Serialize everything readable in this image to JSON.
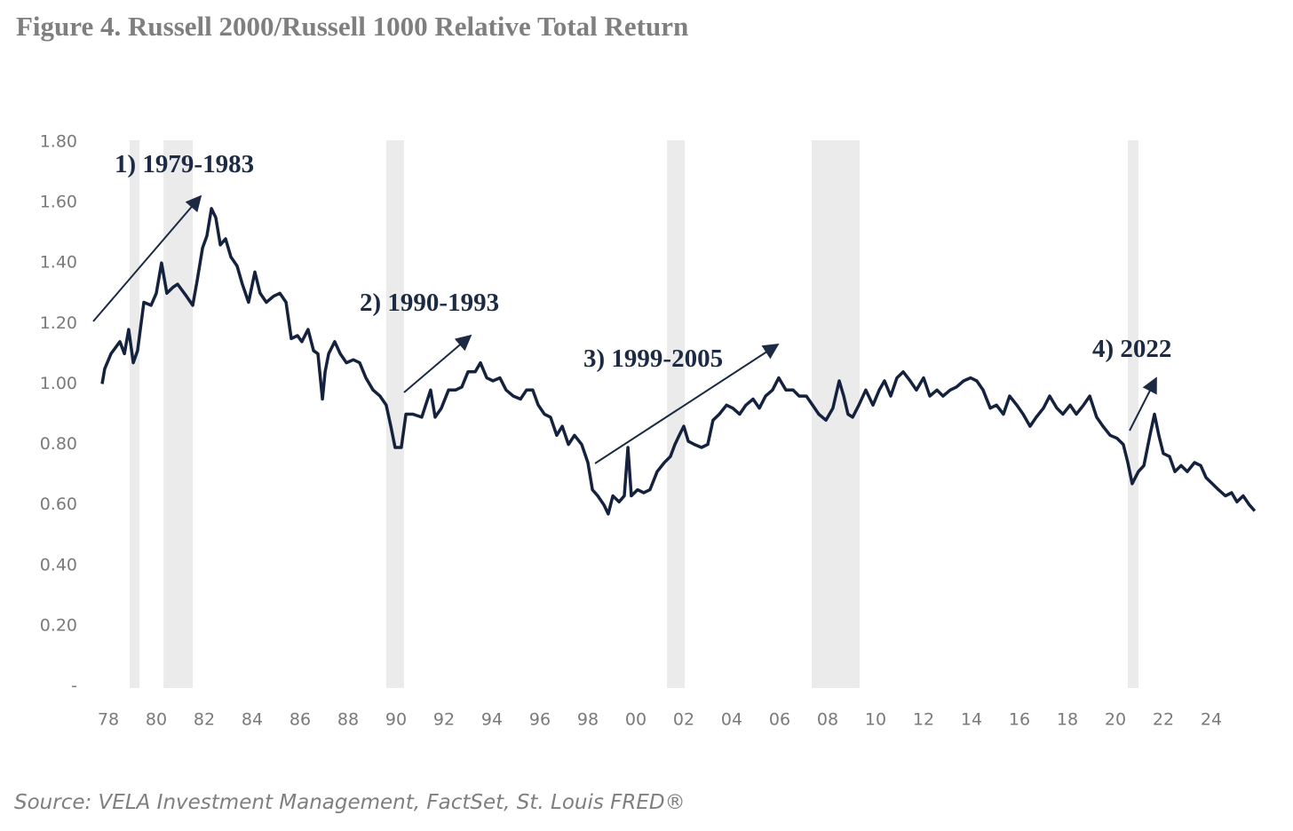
{
  "chart_data": {
    "type": "line",
    "title": "Figure 4. Russell 2000/Russell 1000 Relative Total Return",
    "source": "Source: VELA Investment Management, FactSet, St. Louis FRED®",
    "annotations": [
      "1) 1979-1983",
      "2) 1990-1993",
      "3) 1999-2005",
      "4) 2022"
    ],
    "color": "#15223d",
    "shade_color": "#ebebeb",
    "shaded_periods": [
      [
        1978.89,
        1979.3
      ],
      [
        1980.3,
        1981.52
      ],
      [
        1989.59,
        1990.33
      ],
      [
        2001.3,
        2002.04
      ],
      [
        2007.33,
        2009.33
      ],
      [
        2020.52,
        2020.96
      ]
    ],
    "xlim": [
      1977.2,
      2026.0
    ],
    "ylim": [
      0,
      1.8
    ],
    "xticks": [
      {
        "value": 1978,
        "label": "78"
      },
      {
        "value": 1980,
        "label": "80"
      },
      {
        "value": 1982,
        "label": "82"
      },
      {
        "value": 1984,
        "label": "84"
      },
      {
        "value": 1986,
        "label": "86"
      },
      {
        "value": 1988,
        "label": "88"
      },
      {
        "value": 1990,
        "label": "90"
      },
      {
        "value": 1992,
        "label": "92"
      },
      {
        "value": 1994,
        "label": "94"
      },
      {
        "value": 1996,
        "label": "96"
      },
      {
        "value": 1998,
        "label": "98"
      },
      {
        "value": 2000,
        "label": "00"
      },
      {
        "value": 2002,
        "label": "02"
      },
      {
        "value": 2004,
        "label": "04"
      },
      {
        "value": 2006,
        "label": "06"
      },
      {
        "value": 2008,
        "label": "08"
      },
      {
        "value": 2010,
        "label": "10"
      },
      {
        "value": 2012,
        "label": "12"
      },
      {
        "value": 2014,
        "label": "14"
      },
      {
        "value": 2016,
        "label": "16"
      },
      {
        "value": 2018,
        "label": "18"
      },
      {
        "value": 2020,
        "label": "20"
      },
      {
        "value": 2022,
        "label": "22"
      },
      {
        "value": 2024,
        "label": "24"
      }
    ],
    "yticks": [
      {
        "value": 0,
        "label": "-"
      },
      {
        "value": 0.2,
        "label": "0.20"
      },
      {
        "value": 0.4,
        "label": "0.40"
      },
      {
        "value": 0.6,
        "label": "0.60"
      },
      {
        "value": 0.8,
        "label": "0.80"
      },
      {
        "value": 1.0,
        "label": "1.00"
      },
      {
        "value": 1.2,
        "label": "1.20"
      },
      {
        "value": 1.4,
        "label": "1.40"
      },
      {
        "value": 1.6,
        "label": "1.60"
      },
      {
        "value": 1.8,
        "label": "1.80"
      }
    ],
    "x": [
      1977.74,
      1977.85,
      1978.11,
      1978.48,
      1978.67,
      1978.85,
      1979.04,
      1979.22,
      1979.48,
      1979.78,
      1980.0,
      1980.22,
      1980.44,
      1980.7,
      1980.89,
      1981.26,
      1981.52,
      1981.7,
      1981.93,
      1982.11,
      1982.3,
      1982.48,
      1982.67,
      1982.89,
      1983.11,
      1983.37,
      1983.59,
      1983.85,
      1984.11,
      1984.33,
      1984.59,
      1984.89,
      1985.15,
      1985.41,
      1985.63,
      1985.89,
      1986.07,
      1986.33,
      1986.56,
      1986.74,
      1986.93,
      1987.04,
      1987.19,
      1987.44,
      1987.67,
      1987.93,
      1988.22,
      1988.48,
      1988.74,
      1989.04,
      1989.33,
      1989.59,
      1989.78,
      1989.96,
      1990.22,
      1990.41,
      1990.7,
      1991.07,
      1991.44,
      1991.63,
      1991.89,
      1992.19,
      1992.48,
      1992.74,
      1993.0,
      1993.3,
      1993.52,
      1993.78,
      1994.04,
      1994.33,
      1994.59,
      1994.89,
      1995.19,
      1995.44,
      1995.7,
      1995.93,
      1996.19,
      1996.44,
      1996.7,
      1996.93,
      1997.19,
      1997.44,
      1997.74,
      1998.0,
      1998.19,
      1998.41,
      1998.67,
      1998.85,
      1999.04,
      1999.3,
      1999.52,
      1999.67,
      1999.81,
      2000.07,
      2000.33,
      2000.59,
      2000.89,
      2001.19,
      2001.44,
      2001.63,
      2001.81,
      2002.0,
      2002.19,
      2002.44,
      2002.74,
      2003.0,
      2003.22,
      2003.48,
      2003.78,
      2004.04,
      2004.33,
      2004.59,
      2004.89,
      2005.15,
      2005.41,
      2005.7,
      2005.96,
      2006.26,
      2006.56,
      2006.81,
      2007.11,
      2007.37,
      2007.63,
      2007.93,
      2008.22,
      2008.48,
      2008.67,
      2008.85,
      2009.04,
      2009.3,
      2009.59,
      2009.89,
      2010.15,
      2010.37,
      2010.63,
      2010.89,
      2011.15,
      2011.44,
      2011.7,
      2012.0,
      2012.26,
      2012.56,
      2012.81,
      2013.11,
      2013.37,
      2013.67,
      2013.96,
      2014.22,
      2014.48,
      2014.78,
      2015.04,
      2015.33,
      2015.59,
      2015.89,
      2016.15,
      2016.44,
      2016.7,
      2017.0,
      2017.26,
      2017.56,
      2017.81,
      2018.11,
      2018.37,
      2018.67,
      2018.93,
      2019.22,
      2019.48,
      2019.78,
      2020.07,
      2020.33,
      2020.52,
      2020.7,
      2020.96,
      2021.19,
      2021.44,
      2021.63,
      2021.81,
      2022.0,
      2022.26,
      2022.48,
      2022.74,
      2023.0,
      2023.3,
      2023.56,
      2023.78,
      2024.04,
      2024.3,
      2024.59,
      2024.85,
      2025.07,
      2025.33,
      2025.59,
      2025.81
    ],
    "values": [
      1.0,
      1.05,
      1.1,
      1.14,
      1.1,
      1.18,
      1.07,
      1.11,
      1.27,
      1.26,
      1.3,
      1.4,
      1.3,
      1.32,
      1.33,
      1.29,
      1.26,
      1.34,
      1.45,
      1.49,
      1.58,
      1.55,
      1.46,
      1.48,
      1.42,
      1.39,
      1.33,
      1.27,
      1.37,
      1.3,
      1.27,
      1.29,
      1.3,
      1.27,
      1.15,
      1.16,
      1.14,
      1.18,
      1.11,
      1.1,
      0.95,
      1.04,
      1.1,
      1.14,
      1.1,
      1.07,
      1.08,
      1.07,
      1.02,
      0.98,
      0.96,
      0.93,
      0.86,
      0.79,
      0.79,
      0.9,
      0.9,
      0.89,
      0.98,
      0.89,
      0.92,
      0.98,
      0.98,
      0.99,
      1.04,
      1.04,
      1.07,
      1.02,
      1.01,
      1.02,
      0.98,
      0.96,
      0.95,
      0.98,
      0.98,
      0.93,
      0.9,
      0.89,
      0.83,
      0.86,
      0.8,
      0.83,
      0.8,
      0.74,
      0.65,
      0.63,
      0.6,
      0.57,
      0.63,
      0.61,
      0.63,
      0.79,
      0.63,
      0.65,
      0.64,
      0.65,
      0.71,
      0.74,
      0.76,
      0.8,
      0.83,
      0.86,
      0.81,
      0.8,
      0.79,
      0.8,
      0.88,
      0.9,
      0.93,
      0.92,
      0.9,
      0.93,
      0.95,
      0.92,
      0.96,
      0.98,
      1.02,
      0.98,
      0.98,
      0.96,
      0.96,
      0.93,
      0.9,
      0.88,
      0.92,
      1.01,
      0.96,
      0.9,
      0.89,
      0.93,
      0.98,
      0.93,
      0.98,
      1.01,
      0.96,
      1.02,
      1.04,
      1.01,
      0.98,
      1.02,
      0.96,
      0.98,
      0.96,
      0.98,
      0.99,
      1.01,
      1.02,
      1.01,
      0.98,
      0.92,
      0.93,
      0.9,
      0.96,
      0.93,
      0.9,
      0.86,
      0.89,
      0.92,
      0.96,
      0.92,
      0.9,
      0.93,
      0.9,
      0.93,
      0.96,
      0.89,
      0.86,
      0.83,
      0.82,
      0.8,
      0.74,
      0.67,
      0.71,
      0.73,
      0.83,
      0.9,
      0.83,
      0.77,
      0.76,
      0.71,
      0.73,
      0.71,
      0.74,
      0.73,
      0.69,
      0.67,
      0.65,
      0.63,
      0.64,
      0.61,
      0.63,
      0.6,
      0.58
    ]
  }
}
